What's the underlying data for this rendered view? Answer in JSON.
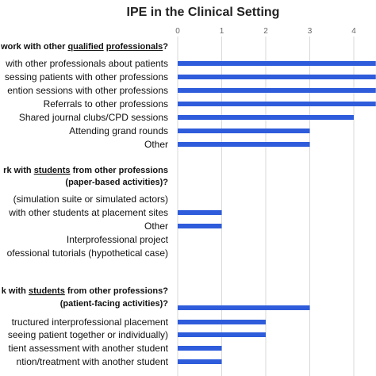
{
  "chart_data": {
    "type": "bar",
    "orientation": "horizontal",
    "title": "IPE in the Clinical Setting",
    "xlim": [
      0,
      4.5
    ],
    "x_ticks": [
      "0",
      "1",
      "2",
      "3",
      "4"
    ],
    "grid": true,
    "legend": "none",
    "bar_color": "#2e5cdb",
    "groups": [
      {
        "header_lines": [
          {
            "segments": [
              {
                "text": "work with other ",
                "u": false
              },
              {
                "text": "qualified",
                "u": true
              },
              {
                "text": " ",
                "u": false
              },
              {
                "text": "professionals",
                "u": true
              },
              {
                "text": "?",
                "u": false
              }
            ]
          }
        ],
        "categories": [
          "with other professionals about patients",
          "sessing patients with other professions",
          "ention sessions with other professions",
          "Referrals to other professions",
          "Shared journal clubs/CPD sessions",
          "Attending grand rounds",
          "Other"
        ],
        "values": [
          4.5,
          4.5,
          4.5,
          4.5,
          4,
          3,
          3
        ]
      },
      {
        "header_lines": [
          {
            "segments": [
              {
                "text": "rk with ",
                "u": false
              },
              {
                "text": "students",
                "u": true
              },
              {
                "text": " from other professions",
                "u": false
              }
            ]
          },
          {
            "segments": [
              {
                "text": "(paper-based activities)?",
                "u": false
              }
            ]
          }
        ],
        "categories": [
          "(simulation suite or simulated actors)",
          "with other students at placement sites",
          "Other",
          "Interprofessional project",
          "ofessional tutorials (hypothetical case)"
        ],
        "values": [
          0,
          1,
          1,
          0,
          0
        ]
      },
      {
        "header_lines": [
          {
            "segments": [
              {
                "text": "k with ",
                "u": false
              },
              {
                "text": "students",
                "u": true
              },
              {
                "text": " from other professions?",
                "u": false
              }
            ]
          },
          {
            "segments": [
              {
                "text": "(patient-facing activities)?",
                "u": false
              }
            ]
          }
        ],
        "categories": [
          "",
          "tructured interprofessional placement",
          "seeing patient together or individually)",
          "tient assessment with another student",
          "ntion/treatment with another student"
        ],
        "values": [
          3,
          2,
          2,
          1,
          1
        ]
      }
    ]
  }
}
